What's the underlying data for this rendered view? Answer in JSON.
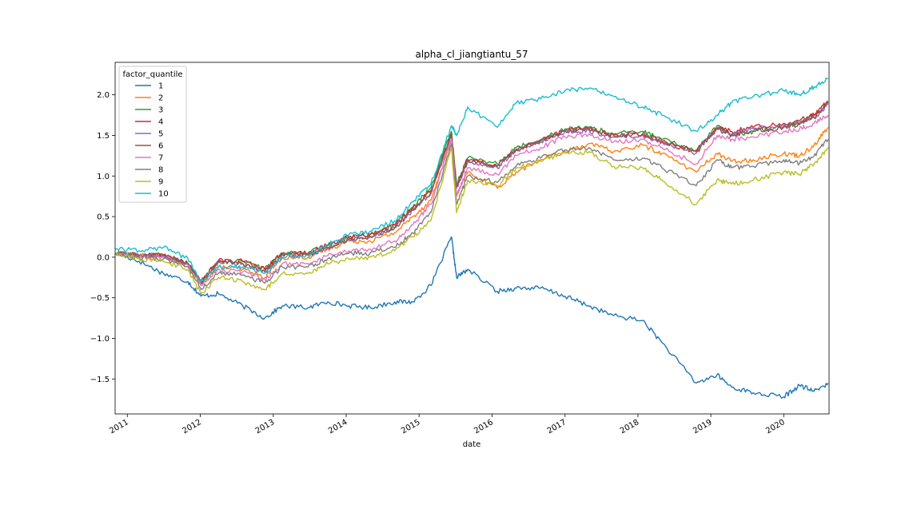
{
  "chart_data": {
    "type": "line",
    "title": "alpha_cl_jiangtiantu_57",
    "xlabel": "date",
    "ylabel": "",
    "xlim": [
      "2010-11-01",
      "2020-08-15"
    ],
    "ylim": [
      -1.93,
      2.4
    ],
    "x_ticks": [
      "2011",
      "2012",
      "2013",
      "2014",
      "2015",
      "2016",
      "2017",
      "2018",
      "2019",
      "2020"
    ],
    "y_ticks": [
      "-1.5",
      "-1.0",
      "-0.5",
      "0.0",
      "0.5",
      "1.0",
      "1.5",
      "2.0"
    ],
    "grid": false,
    "legend": {
      "title": "factor_quantile",
      "position": "top-left"
    },
    "x": [
      "2010-11-01",
      "2011-03-01",
      "2011-07-01",
      "2011-11-01",
      "2012-01-05",
      "2012-04-01",
      "2012-08-01",
      "2012-11-20",
      "2013-02-15",
      "2013-06-25",
      "2013-10-01",
      "2014-01-15",
      "2014-05-01",
      "2014-09-01",
      "2014-12-01",
      "2015-03-01",
      "2015-06-12",
      "2015-07-08",
      "2015-09-01",
      "2016-01-28",
      "2016-05-01",
      "2016-09-01",
      "2017-01-01",
      "2017-05-01",
      "2017-09-01",
      "2018-01-25",
      "2018-05-01",
      "2018-10-20",
      "2019-02-01",
      "2019-04-15",
      "2019-08-01",
      "2020-01-01",
      "2020-03-20",
      "2020-06-01",
      "2020-08-10"
    ],
    "series": [
      {
        "name": "1",
        "color": "#1f77b4",
        "values": [
          0.05,
          -0.05,
          -0.2,
          -0.3,
          -0.48,
          -0.45,
          -0.6,
          -0.75,
          -0.6,
          -0.62,
          -0.55,
          -0.6,
          -0.62,
          -0.55,
          -0.55,
          -0.35,
          0.25,
          -0.25,
          -0.15,
          -0.42,
          -0.38,
          -0.38,
          -0.48,
          -0.6,
          -0.72,
          -0.78,
          -1.05,
          -1.55,
          -1.45,
          -1.6,
          -1.67,
          -1.72,
          -1.58,
          -1.65,
          -1.55
        ]
      },
      {
        "name": "2",
        "color": "#ff7f0e",
        "values": [
          0.05,
          0.02,
          0.02,
          -0.1,
          -0.35,
          -0.12,
          -0.15,
          -0.25,
          0.0,
          0.0,
          0.1,
          0.2,
          0.2,
          0.3,
          0.5,
          0.7,
          1.45,
          0.75,
          1.05,
          0.85,
          1.05,
          1.2,
          1.3,
          1.4,
          1.3,
          1.38,
          1.28,
          1.05,
          1.28,
          1.18,
          1.2,
          1.28,
          1.25,
          1.38,
          1.6
        ]
      },
      {
        "name": "3",
        "color": "#2ca02c",
        "values": [
          0.05,
          0.02,
          0.03,
          -0.08,
          -0.3,
          -0.05,
          -0.05,
          -0.15,
          0.05,
          0.05,
          0.15,
          0.25,
          0.28,
          0.4,
          0.62,
          0.85,
          1.55,
          0.9,
          1.22,
          1.15,
          1.35,
          1.45,
          1.58,
          1.6,
          1.52,
          1.55,
          1.45,
          1.32,
          1.62,
          1.5,
          1.55,
          1.62,
          1.65,
          1.75,
          1.9
        ]
      },
      {
        "name": "4",
        "color": "#d62728",
        "values": [
          0.05,
          0.02,
          0.03,
          -0.08,
          -0.3,
          -0.04,
          -0.05,
          -0.15,
          0.05,
          0.05,
          0.15,
          0.25,
          0.28,
          0.4,
          0.6,
          0.82,
          1.52,
          0.88,
          1.2,
          1.12,
          1.32,
          1.44,
          1.56,
          1.58,
          1.5,
          1.52,
          1.42,
          1.3,
          1.6,
          1.55,
          1.6,
          1.65,
          1.68,
          1.75,
          1.92
        ]
      },
      {
        "name": "5",
        "color": "#9467bd",
        "values": [
          0.05,
          0.02,
          0.02,
          -0.08,
          -0.32,
          -0.06,
          -0.08,
          -0.18,
          0.03,
          0.03,
          0.12,
          0.22,
          0.25,
          0.36,
          0.58,
          0.78,
          1.5,
          0.85,
          1.18,
          1.1,
          1.32,
          1.42,
          1.55,
          1.56,
          1.48,
          1.5,
          1.42,
          1.28,
          1.6,
          1.52,
          1.58,
          1.62,
          1.65,
          1.72,
          1.88
        ]
      },
      {
        "name": "6",
        "color": "#8c564b",
        "values": [
          0.05,
          0.02,
          0.02,
          -0.08,
          -0.32,
          -0.06,
          -0.08,
          -0.18,
          0.03,
          0.03,
          0.12,
          0.22,
          0.25,
          0.36,
          0.58,
          0.8,
          1.52,
          0.86,
          1.2,
          1.12,
          1.33,
          1.44,
          1.56,
          1.58,
          1.5,
          1.52,
          1.43,
          1.3,
          1.58,
          1.5,
          1.55,
          1.6,
          1.63,
          1.72,
          1.9
        ]
      },
      {
        "name": "7",
        "color": "#e377c2",
        "values": [
          0.05,
          0.0,
          0.0,
          -0.1,
          -0.35,
          -0.15,
          -0.18,
          -0.28,
          -0.08,
          -0.08,
          0.02,
          0.08,
          0.1,
          0.2,
          0.4,
          0.65,
          1.45,
          0.75,
          1.1,
          1.02,
          1.25,
          1.35,
          1.48,
          1.52,
          1.42,
          1.45,
          1.35,
          1.15,
          1.5,
          1.45,
          1.48,
          1.55,
          1.58,
          1.65,
          1.75
        ]
      },
      {
        "name": "8",
        "color": "#7f7f7f",
        "values": [
          0.05,
          0.0,
          -0.02,
          -0.12,
          -0.4,
          -0.2,
          -0.22,
          -0.32,
          -0.12,
          -0.12,
          -0.02,
          0.05,
          0.05,
          0.12,
          0.3,
          0.55,
          1.4,
          0.65,
          1.0,
          0.92,
          1.12,
          1.22,
          1.32,
          1.35,
          1.2,
          1.22,
          1.1,
          0.88,
          1.2,
          1.1,
          1.12,
          1.2,
          1.15,
          1.25,
          1.45
        ]
      },
      {
        "name": "9",
        "color": "#bcbd22",
        "values": [
          0.05,
          -0.02,
          -0.05,
          -0.15,
          -0.45,
          -0.25,
          -0.3,
          -0.4,
          -0.2,
          -0.2,
          -0.08,
          -0.02,
          0.0,
          0.08,
          0.25,
          0.45,
          1.35,
          0.55,
          0.95,
          0.88,
          1.1,
          1.18,
          1.28,
          1.3,
          1.12,
          1.1,
          0.95,
          0.65,
          0.95,
          0.9,
          0.95,
          1.05,
          1.02,
          1.15,
          1.35
        ]
      },
      {
        "name": "10",
        "color": "#17becf",
        "values": [
          0.1,
          0.08,
          0.12,
          -0.02,
          -0.3,
          -0.12,
          -0.12,
          -0.2,
          0.0,
          0.02,
          0.15,
          0.28,
          0.32,
          0.45,
          0.68,
          0.9,
          1.62,
          1.5,
          1.85,
          1.6,
          1.9,
          1.95,
          2.05,
          2.08,
          1.98,
          1.85,
          1.75,
          1.55,
          1.75,
          1.9,
          1.98,
          2.05,
          2.0,
          2.1,
          2.2
        ]
      }
    ]
  }
}
